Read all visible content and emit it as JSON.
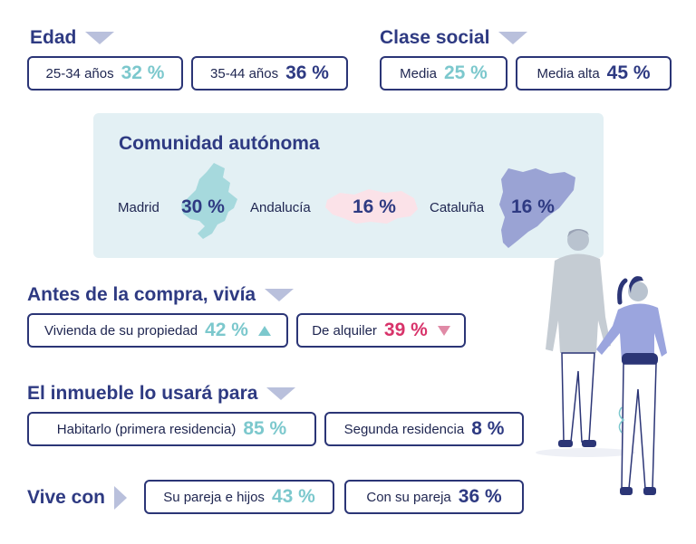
{
  "edad": {
    "title": "Edad",
    "items": [
      {
        "label": "25-34 años",
        "value": "32 %"
      },
      {
        "label": "35-44 años",
        "value": "36 %"
      }
    ]
  },
  "clase_social": {
    "title": "Clase social",
    "items": [
      {
        "label": "Media",
        "value": "25 %"
      },
      {
        "label": "Media alta",
        "value": "45 %"
      }
    ]
  },
  "comunidad": {
    "title": "Comunidad autónoma",
    "regions": [
      {
        "label": "Madrid",
        "value": "30 %",
        "color": "#a6d9dd",
        "icon": "madrid-map-icon"
      },
      {
        "label": "Andalucía",
        "value": "16 %",
        "color": "#fbe2e8",
        "icon": "andalucia-map-icon"
      },
      {
        "label": "Cataluña",
        "value": "16 %",
        "color": "#9aa3d4",
        "icon": "cataluna-map-icon"
      }
    ]
  },
  "antes_compra": {
    "title": "Antes de la compra, vivía",
    "items": [
      {
        "label": "Vivienda de su propiedad",
        "value": "42 %",
        "trend": "up"
      },
      {
        "label": "De alquiler",
        "value": "39 %",
        "trend": "down"
      }
    ]
  },
  "uso_inmueble": {
    "title": "El inmueble lo usará para",
    "items": [
      {
        "label": "Habitarlo (primera residencia)",
        "value": "85 %"
      },
      {
        "label": "Segunda residencia",
        "value": "8 %"
      }
    ]
  },
  "vive_con": {
    "title": "Vive con",
    "items": [
      {
        "label": "Su pareja e hijos",
        "value": "43 %"
      },
      {
        "label": "Con su pareja",
        "value": "36 %"
      }
    ]
  },
  "colors": {
    "navy": "#2e3a82",
    "teal": "#7cc8cd",
    "red": "#d8336a",
    "panel_bg": "#e3f0f4"
  },
  "illustration": {
    "icon": "couple-illustration"
  }
}
